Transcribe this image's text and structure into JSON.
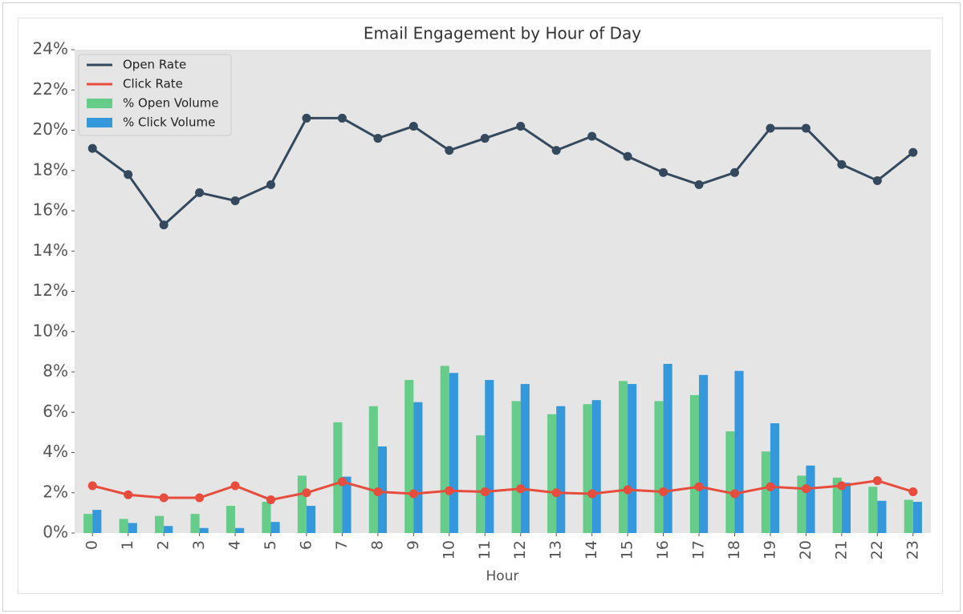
{
  "chart_data": {
    "type": "bar",
    "title": "Email Engagement by Hour of Day",
    "xlabel": "Hour",
    "categories": [
      "0",
      "1",
      "2",
      "3",
      "4",
      "5",
      "6",
      "7",
      "8",
      "9",
      "10",
      "11",
      "12",
      "13",
      "14",
      "15",
      "16",
      "17",
      "18",
      "19",
      "20",
      "21",
      "22",
      "23"
    ],
    "series": [
      {
        "name": "Open Rate",
        "type": "line",
        "color": "#34495e",
        "values": [
          19.1,
          17.8,
          15.3,
          16.9,
          16.5,
          17.3,
          20.6,
          20.6,
          19.6,
          20.2,
          19.0,
          19.6,
          20.2,
          19.0,
          19.7,
          18.7,
          17.9,
          17.3,
          17.9,
          20.1,
          20.1,
          18.3,
          17.5,
          18.9
        ]
      },
      {
        "name": "Click Rate",
        "type": "line",
        "color": "#e74c3c",
        "values": [
          2.35,
          1.9,
          1.75,
          1.75,
          2.35,
          1.65,
          2.0,
          2.55,
          2.05,
          1.95,
          2.1,
          2.05,
          2.2,
          2.0,
          1.95,
          2.15,
          2.05,
          2.3,
          1.95,
          2.3,
          2.2,
          2.35,
          2.6,
          2.05
        ]
      },
      {
        "name": "% Open Volume",
        "type": "bar",
        "color": "#66cc8a",
        "values": [
          0.95,
          0.7,
          0.85,
          0.95,
          1.35,
          1.55,
          2.85,
          5.5,
          6.3,
          7.6,
          8.3,
          4.85,
          6.55,
          5.9,
          6.4,
          7.55,
          6.55,
          6.85,
          5.05,
          4.05,
          2.85,
          2.75,
          2.3,
          1.65
        ]
      },
      {
        "name": "% Click Volume",
        "type": "bar",
        "color": "#3498db",
        "values": [
          1.15,
          0.5,
          0.35,
          0.25,
          0.25,
          0.55,
          1.35,
          2.8,
          4.3,
          6.5,
          7.95,
          7.6,
          7.4,
          6.3,
          6.6,
          7.4,
          8.4,
          7.85,
          8.05,
          5.45,
          3.35,
          2.5,
          1.6,
          1.55
        ]
      }
    ],
    "ylim": [
      0,
      24
    ],
    "yticks": [
      {
        "value": 0,
        "label": "0%"
      },
      {
        "value": 2,
        "label": "2%"
      },
      {
        "value": 4,
        "label": "4%"
      },
      {
        "value": 6,
        "label": "6%"
      },
      {
        "value": 8,
        "label": "8%"
      },
      {
        "value": 10,
        "label": "10%"
      },
      {
        "value": 12,
        "label": "12%"
      },
      {
        "value": 14,
        "label": "14%"
      },
      {
        "value": 16,
        "label": "16%"
      },
      {
        "value": 18,
        "label": "18%"
      },
      {
        "value": 20,
        "label": "20%"
      },
      {
        "value": 22,
        "label": "22%"
      },
      {
        "value": 24,
        "label": "24%"
      }
    ],
    "grid": false,
    "legend": "upper left"
  }
}
